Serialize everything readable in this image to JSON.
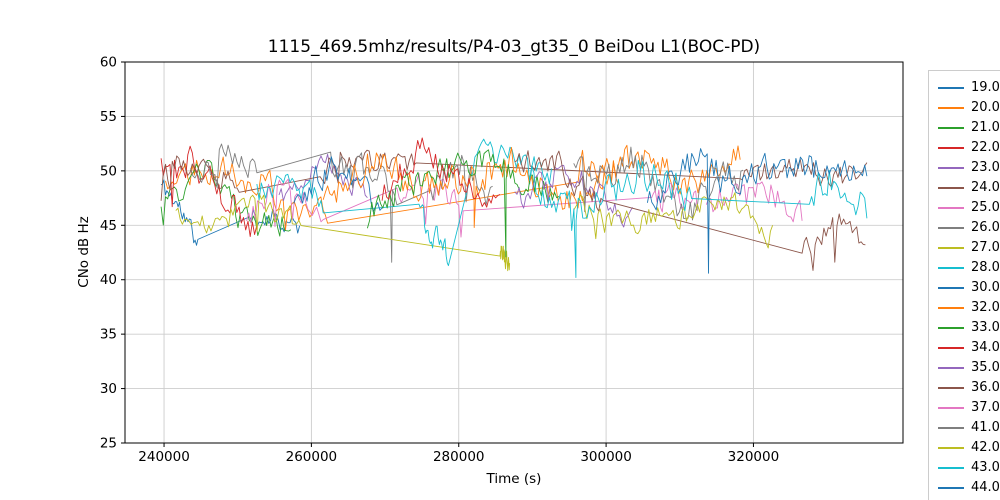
{
  "chart_data": {
    "type": "line",
    "title": "1115_469.5mhz/results/P4-03_gt35_0 BeiDou L1(BOC-PD)",
    "xlabel": "Time (s)",
    "ylabel": "CNo dB Hz",
    "xlim": [
      234700,
      340300
    ],
    "ylim": [
      25,
      60
    ],
    "xticks": [
      240000,
      260000,
      280000,
      300000,
      320000
    ],
    "yticks": [
      25,
      30,
      35,
      40,
      45,
      50,
      55,
      60
    ],
    "grid": true,
    "grid_color": "#cdcdcd",
    "axes_color": "#000000",
    "legend_position": "right-outside",
    "series": [
      {
        "label": "19.0",
        "color": "#1f77b4",
        "seed": 11,
        "noise": 0.75,
        "segments": [
          {
            "x0": 239600,
            "x1": 244600,
            "base": [
              48.2,
              46.3,
              43.9
            ]
          },
          {
            "x0": 251600,
            "x1": 258400,
            "base": [
              44.9,
              46.4,
              45.1
            ]
          }
        ],
        "dips": []
      },
      {
        "label": "20.0",
        "color": "#ff7f0e",
        "seed": 22,
        "noise": 1.05,
        "segments": [
          {
            "x0": 240200,
            "x1": 262200,
            "base": [
              48.8,
              51.0,
              47.6,
              46.4
            ]
          },
          {
            "x0": 296200,
            "x1": 318200,
            "base": [
              49.9,
              51.1,
              49.4,
              50.6
            ]
          }
        ],
        "dips": []
      },
      {
        "label": "21.0",
        "color": "#2ca02c",
        "seed": 33,
        "noise": 0.9,
        "segments": [
          {
            "x0": 239600,
            "x1": 257200,
            "base": [
              47.1,
              49.6,
              45.6,
              44.4
            ]
          }
        ],
        "dips": []
      },
      {
        "label": "22.0",
        "color": "#d62728",
        "seed": 44,
        "noise": 1.0,
        "segments": [
          {
            "x0": 239600,
            "x1": 252600,
            "base": [
              50.1,
              51.4,
              46.9,
              44.7
            ]
          }
        ],
        "dips": []
      },
      {
        "label": "23.0",
        "color": "#9467bd",
        "seed": 55,
        "noise": 0.85,
        "segments": [
          {
            "x0": 255600,
            "x1": 267600,
            "base": [
              48.4,
              50.4,
              48.7
            ]
          }
        ],
        "dips": []
      },
      {
        "label": "24.0",
        "color": "#8c564b",
        "seed": 66,
        "noise": 0.85,
        "segments": [
          {
            "x0": 239600,
            "x1": 250200,
            "base": [
              49.7,
              50.4,
              49.5
            ]
          },
          {
            "x0": 261200,
            "x1": 274200,
            "base": [
              49.6,
              52.0,
              49.7
            ]
          },
          {
            "x0": 318200,
            "x1": 335400,
            "base": [
              49.4,
              50.9,
              49.1,
              50.3
            ]
          }
        ],
        "dips": []
      },
      {
        "label": "25.0",
        "color": "#e377c2",
        "seed": 77,
        "noise": 0.9,
        "segments": [
          {
            "x0": 251200,
            "x1": 261600,
            "base": [
              46.1,
              48.9,
              45.9
            ]
          },
          {
            "x0": 271600,
            "x1": 280600,
            "base": [
              49.2,
              47.1
            ]
          },
          {
            "x0": 306200,
            "x1": 312400,
            "base": [
              47.4,
              46.7
            ]
          }
        ],
        "dips": []
      },
      {
        "label": "26.0",
        "color": "#7f7f7f",
        "seed": 88,
        "noise": 1.0,
        "segments": [
          {
            "x0": 243600,
            "x1": 252600,
            "base": [
              49.9,
              51.1,
              49.8
            ]
          },
          {
            "x0": 262600,
            "x1": 271600,
            "base": [
              51.2,
              50.1,
              47.6
            ]
          },
          {
            "x0": 276200,
            "x1": 284600,
            "base": [
              48.6,
              50.1,
              47.4
            ]
          }
        ],
        "dips": [
          {
            "x": 270900,
            "y": 41.6
          }
        ]
      },
      {
        "label": "27.0",
        "color": "#bcbd22",
        "seed": 99,
        "noise": 0.75,
        "segments": [
          {
            "x0": 241600,
            "x1": 258600,
            "base": [
              46.4,
              45.1,
              46.9,
              45.8
            ]
          },
          {
            "x0": 285600,
            "x1": 286900,
            "base": [
              42.4,
              42.0
            ]
          }
        ],
        "dips": []
      },
      {
        "label": "28.0",
        "color": "#17becf",
        "seed": 111,
        "noise": 0.9,
        "segments": [
          {
            "x0": 252600,
            "x1": 261600,
            "base": [
              47.2,
              49.9,
              46.4
            ]
          },
          {
            "x0": 274600,
            "x1": 278600,
            "base": [
              45.9,
              42.9
            ]
          },
          {
            "x0": 281600,
            "x1": 292600,
            "base": [
              50.4,
              51.9,
              49.7
            ]
          }
        ],
        "dips": []
      },
      {
        "label": "30.0",
        "color": "#1f77b4",
        "seed": 122,
        "noise": 1.0,
        "segments": [
          {
            "x0": 257600,
            "x1": 269600,
            "base": [
              46.6,
              50.8,
              48.8,
              46.1
            ]
          }
        ],
        "dips": []
      },
      {
        "label": "32.0",
        "color": "#ff7f0e",
        "seed": 133,
        "noise": 1.15,
        "segments": [
          {
            "x0": 261600,
            "x1": 301600,
            "base": [
              47.6,
              50.9,
              48.1,
              51.1,
              47.3,
              50.1
            ]
          }
        ],
        "dips": [
          {
            "x": 282100,
            "y": 44.8
          }
        ]
      },
      {
        "label": "33.0",
        "color": "#2ca02c",
        "seed": 144,
        "noise": 1.0,
        "segments": [
          {
            "x0": 267600,
            "x1": 293600,
            "base": [
              45.9,
              49.9,
              51.1,
              46.7
            ]
          }
        ],
        "dips": [
          {
            "x": 286400,
            "y": 42.1
          }
        ]
      },
      {
        "label": "34.0",
        "color": "#d62728",
        "seed": 155,
        "noise": 1.05,
        "segments": [
          {
            "x0": 269600,
            "x1": 285600,
            "base": [
              47.9,
              51.4,
              50.1,
              45.8
            ]
          }
        ],
        "dips": []
      },
      {
        "label": "35.0",
        "color": "#9467bd",
        "seed": 166,
        "noise": 0.9,
        "segments": [
          {
            "x0": 287600,
            "x1": 303600,
            "base": [
              47.1,
              50.2,
              47.7,
              46.2
            ]
          }
        ],
        "dips": []
      },
      {
        "label": "36.0",
        "color": "#8c564b",
        "seed": 177,
        "noise": 0.85,
        "segments": [
          {
            "x0": 287600,
            "x1": 299600,
            "base": [
              50.3,
              51.3,
              46.1
            ]
          },
          {
            "x0": 326600,
            "x1": 335200,
            "base": [
              43.4,
              44.7,
              43.7
            ]
          }
        ],
        "dips": []
      },
      {
        "label": "37.0",
        "color": "#e377c2",
        "seed": 188,
        "noise": 1.0,
        "segments": [
          {
            "x0": 313600,
            "x1": 326600,
            "base": [
              46.1,
              48.7,
              47.8,
              45.7
            ]
          }
        ],
        "dips": []
      },
      {
        "label": "41.0",
        "color": "#7f7f7f",
        "seed": 199,
        "noise": 1.1,
        "segments": [
          {
            "x0": 295600,
            "x1": 318600,
            "base": [
              49.1,
              51.1,
              46.7,
              49.5
            ]
          }
        ],
        "dips": []
      },
      {
        "label": "42.0",
        "color": "#bcbd22",
        "seed": 211,
        "noise": 0.9,
        "segments": [
          {
            "x0": 295600,
            "x1": 322600,
            "base": [
              46.5,
              45.3,
              47.1,
              44.8
            ]
          }
        ],
        "dips": []
      },
      {
        "label": "43.0",
        "color": "#17becf",
        "seed": 222,
        "noise": 1.15,
        "segments": [
          {
            "x0": 289600,
            "x1": 311600,
            "base": [
              49.7,
              46.2,
              50.5,
              46.8
            ]
          },
          {
            "x0": 327600,
            "x1": 335400,
            "base": [
              47.4,
              49.1,
              47.1
            ]
          }
        ],
        "dips": [
          {
            "x": 295900,
            "y": 40.2
          }
        ]
      },
      {
        "label": "44.0",
        "color": "#1f77b4",
        "seed": 233,
        "noise": 1.0,
        "segments": [
          {
            "x0": 305600,
            "x1": 335400,
            "base": [
              48.1,
              50.7,
              49.2,
              50.9,
              49.4
            ]
          }
        ],
        "dips": [
          {
            "x": 313900,
            "y": 40.6
          }
        ]
      }
    ]
  }
}
